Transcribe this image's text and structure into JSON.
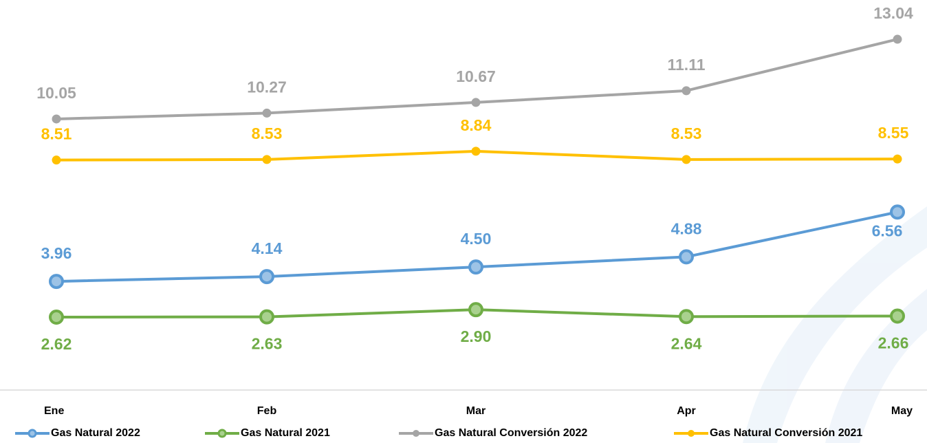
{
  "chart_data": {
    "type": "line",
    "categories": [
      "Ene",
      "Feb",
      "Mar",
      "Apr",
      "May"
    ],
    "series": [
      {
        "name": "Gas Natural 2022",
        "color": "#5b9bd5",
        "values": [
          3.96,
          4.14,
          4.5,
          4.88,
          6.56
        ],
        "value_labels": [
          "3.96",
          "4.14",
          "4.50",
          "4.88",
          "6.56"
        ]
      },
      {
        "name": "Gas Natural 2021",
        "color": "#70ad47",
        "values": [
          2.62,
          2.63,
          2.9,
          2.64,
          2.66
        ],
        "value_labels": [
          "2.62",
          "2.63",
          "2.90",
          "2.64",
          "2.66"
        ]
      },
      {
        "name": "Gas Natural Conversión 2022",
        "color": "#a5a5a5",
        "values": [
          10.05,
          10.27,
          10.67,
          11.11,
          13.04
        ],
        "value_labels": [
          "10.05",
          "10.27",
          "10.67",
          "11.11",
          "13.04"
        ]
      },
      {
        "name": "Gas Natural Conversión 2021",
        "color": "#ffc000",
        "values": [
          8.51,
          8.53,
          8.84,
          8.53,
          8.55
        ],
        "value_labels": [
          "8.51",
          "8.53",
          "8.84",
          "8.53",
          "8.55"
        ]
      }
    ]
  }
}
